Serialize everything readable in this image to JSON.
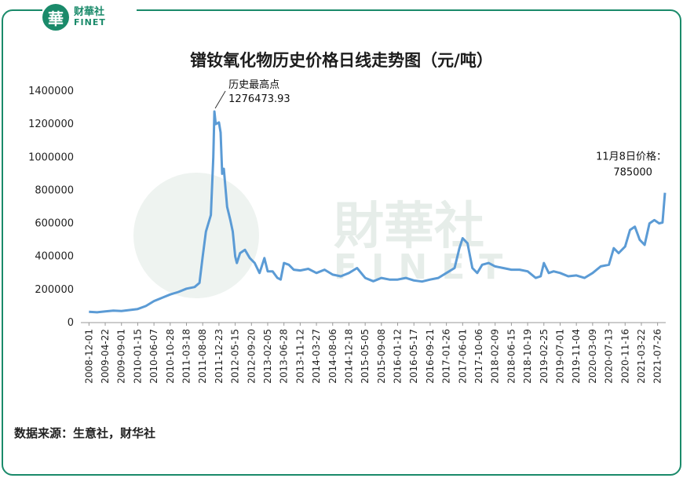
{
  "brand": {
    "logo_char": "華",
    "name_cn": "财華社",
    "name_en": "FINET"
  },
  "title": "镨钕氧化物历史价格日线走势图（元/吨）",
  "source": "数据来源：生意社，财华社",
  "watermark": {
    "cn": "財華社",
    "en": "FINET"
  },
  "colors": {
    "line": "#5b9bd5",
    "frame": "#1a8a6a",
    "logo": "#1a8a6a"
  },
  "chart_data": {
    "type": "line",
    "title": "镨钕氧化物历史价格日线走势图（元/吨）",
    "ylim": [
      0,
      1400000
    ],
    "yticks": [
      0,
      200000,
      400000,
      600000,
      800000,
      1000000,
      1200000,
      1400000
    ],
    "xticks": [
      "2008-12-01",
      "2009-04-22",
      "2009-09-01",
      "2010-01-15",
      "2010-06-07",
      "2010-10-28",
      "2011-03-18",
      "2011-08-08",
      "2011-12-23",
      "2012-05-15",
      "2012-09-20",
      "2013-02-05",
      "2013-06-28",
      "2013-11-12",
      "2014-03-27",
      "2014-08-06",
      "2014-12-18",
      "2015-05-05",
      "2015-09-08",
      "2016-01-12",
      "2016-05-17",
      "2016-09-21",
      "2017-01-26",
      "2017-06-01",
      "2017-10-06",
      "2018-02-09",
      "2018-06-15",
      "2018-10-19",
      "2019-02-25",
      "2019-07-01",
      "2019-11-04",
      "2020-03-09",
      "2020-07-13",
      "2020-11-16",
      "2021-03-22",
      "2021-07-26"
    ],
    "annotations": [
      {
        "label": "历史最高点",
        "value_text": "1276473.93",
        "value": 1276473.93
      },
      {
        "label": "11月8日价格：",
        "value_text": "785000",
        "value": 785000
      }
    ],
    "series": [
      {
        "points": [
          [
            0,
            65000
          ],
          [
            0.5,
            62000
          ],
          [
            1,
            68000
          ],
          [
            1.5,
            72000
          ],
          [
            2,
            70000
          ],
          [
            2.5,
            76000
          ],
          [
            3,
            82000
          ],
          [
            3.5,
            100000
          ],
          [
            4,
            130000
          ],
          [
            4.5,
            150000
          ],
          [
            5,
            170000
          ],
          [
            5.5,
            185000
          ],
          [
            6,
            205000
          ],
          [
            6.5,
            215000
          ],
          [
            6.8,
            240000
          ],
          [
            7,
            400000
          ],
          [
            7.2,
            550000
          ],
          [
            7.5,
            650000
          ],
          [
            7.65,
            1000000
          ],
          [
            7.72,
            1276473.93
          ],
          [
            7.8,
            1200000
          ],
          [
            8.0,
            1210000
          ],
          [
            8.1,
            1150000
          ],
          [
            8.2,
            900000
          ],
          [
            8.3,
            930000
          ],
          [
            8.5,
            700000
          ],
          [
            8.7,
            620000
          ],
          [
            8.85,
            550000
          ],
          [
            9.0,
            400000
          ],
          [
            9.1,
            360000
          ],
          [
            9.3,
            420000
          ],
          [
            9.6,
            440000
          ],
          [
            9.9,
            390000
          ],
          [
            10.2,
            360000
          ],
          [
            10.5,
            300000
          ],
          [
            10.6,
            330000
          ],
          [
            10.8,
            390000
          ],
          [
            11,
            310000
          ],
          [
            11.3,
            310000
          ],
          [
            11.6,
            270000
          ],
          [
            11.8,
            260000
          ],
          [
            12,
            360000
          ],
          [
            12.3,
            350000
          ],
          [
            12.6,
            320000
          ],
          [
            13,
            315000
          ],
          [
            13.5,
            325000
          ],
          [
            14,
            300000
          ],
          [
            14.5,
            320000
          ],
          [
            15,
            290000
          ],
          [
            15.5,
            280000
          ],
          [
            16,
            300000
          ],
          [
            16.5,
            330000
          ],
          [
            17,
            270000
          ],
          [
            17.5,
            250000
          ],
          [
            18,
            270000
          ],
          [
            18.5,
            260000
          ],
          [
            19,
            260000
          ],
          [
            19.5,
            270000
          ],
          [
            20,
            255000
          ],
          [
            20.5,
            248000
          ],
          [
            21,
            260000
          ],
          [
            21.5,
            270000
          ],
          [
            22,
            300000
          ],
          [
            22.5,
            330000
          ],
          [
            22.8,
            450000
          ],
          [
            23,
            510000
          ],
          [
            23.3,
            480000
          ],
          [
            23.6,
            330000
          ],
          [
            23.9,
            300000
          ],
          [
            24.2,
            350000
          ],
          [
            24.6,
            360000
          ],
          [
            25,
            340000
          ],
          [
            25.5,
            330000
          ],
          [
            26,
            320000
          ],
          [
            26.5,
            320000
          ],
          [
            27,
            310000
          ],
          [
            27.5,
            270000
          ],
          [
            27.8,
            280000
          ],
          [
            28,
            360000
          ],
          [
            28.3,
            300000
          ],
          [
            28.6,
            310000
          ],
          [
            29,
            300000
          ],
          [
            29.5,
            280000
          ],
          [
            30,
            285000
          ],
          [
            30.5,
            270000
          ],
          [
            31,
            300000
          ],
          [
            31.5,
            340000
          ],
          [
            32,
            350000
          ],
          [
            32.3,
            450000
          ],
          [
            32.6,
            420000
          ],
          [
            33,
            460000
          ],
          [
            33.3,
            560000
          ],
          [
            33.6,
            580000
          ],
          [
            33.9,
            500000
          ],
          [
            34.2,
            470000
          ],
          [
            34.5,
            600000
          ],
          [
            34.8,
            620000
          ],
          [
            35.1,
            600000
          ],
          [
            35.3,
            605000
          ],
          [
            35.45,
            785000
          ]
        ]
      }
    ]
  }
}
